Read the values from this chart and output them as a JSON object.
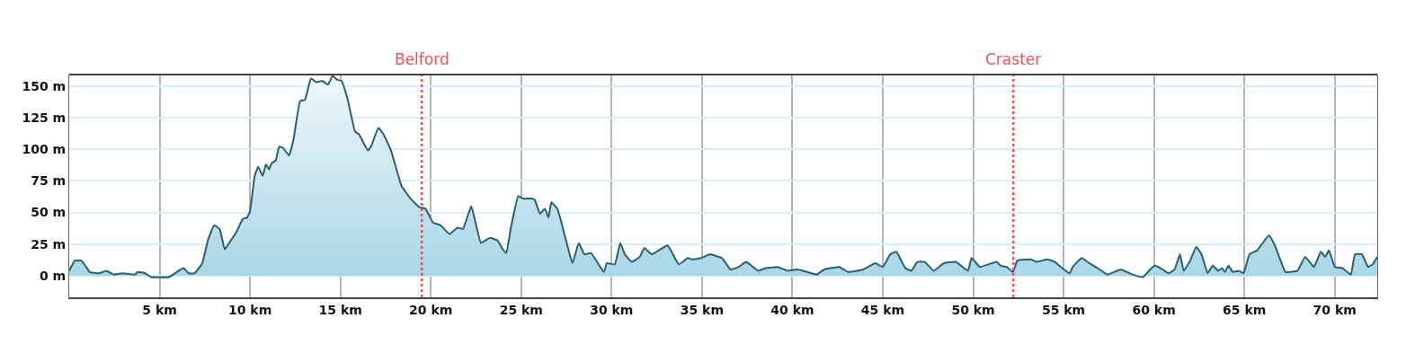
{
  "chart_data": {
    "type": "area",
    "series": [
      {
        "color": "#2b5f6e",
        "x": [
          0,
          0.31,
          0.67,
          0.89,
          1.14,
          1.64,
          2.05,
          2.47,
          2.96,
          3.62,
          3.79,
          4.2,
          4.53,
          5.53,
          5.95,
          6.33,
          6.61,
          6.94,
          7.36,
          7.69,
          8.02,
          8.32,
          8.6,
          8.85,
          9.26,
          9.6,
          9.84,
          10.0,
          10.26,
          10.45,
          10.7,
          10.88,
          11.05,
          11.2,
          11.42,
          11.61,
          11.83,
          12.16,
          12.41,
          12.77,
          13.04,
          13.37,
          13.66,
          13.99,
          14.32,
          14.57,
          14.81,
          15.06,
          15.39,
          15.81,
          16.02,
          16.52,
          16.72,
          17.1,
          17.38,
          17.8,
          18.38,
          18.88,
          19.38,
          19.71,
          20.12,
          20.53,
          21.03,
          21.48,
          21.78,
          22.24,
          22.77,
          23.27,
          23.68,
          23.98,
          24.18,
          24.43,
          24.84,
          25.09,
          25.58,
          25.75,
          26.04,
          26.31,
          26.51,
          26.67,
          27.0,
          27.5,
          27.83,
          28.19,
          28.49,
          28.86,
          29.57,
          29.74,
          30.18,
          30.48,
          30.73,
          31.11,
          31.56,
          31.81,
          32.22,
          33.1,
          33.72,
          34.21,
          34.46,
          34.95,
          35.45,
          35.91,
          36.11,
          36.58,
          37.03,
          37.44,
          38.11,
          38.52,
          39.18,
          39.76,
          40.26,
          40.59,
          41.34,
          41.76,
          42.59,
          43.09,
          43.92,
          44.58,
          45.0,
          45.42,
          45.75,
          46.25,
          46.58,
          46.91,
          47.32,
          47.82,
          48.38,
          49.04,
          49.71,
          49.91,
          50.37,
          51.29,
          51.53,
          51.86,
          52.2,
          52.44,
          53.19,
          53.52,
          54.1,
          54.52,
          55.02,
          55.34,
          55.51,
          56.0,
          56.42,
          57.0,
          57.41,
          58.16,
          58.82,
          59.4,
          59.79,
          60.06,
          60.48,
          60.81,
          61.14,
          61.44,
          61.64,
          61.97,
          62.34,
          62.63,
          62.97,
          63.25,
          63.55,
          63.76,
          63.93,
          64.12,
          64.37,
          64.71,
          64.96,
          65.28,
          65.7,
          66.36,
          66.69,
          67.28,
          67.94,
          68.36,
          68.85,
          69.23,
          69.46,
          69.68,
          70.01,
          70.43,
          70.89,
          71.12,
          71.51,
          71.84,
          72.09,
          72.35
        ],
        "values": [
          4,
          12,
          12,
          8,
          3,
          2,
          4,
          1,
          2,
          1,
          3,
          2,
          -1,
          -1,
          3,
          6,
          2,
          2,
          10,
          29,
          40,
          37,
          21,
          26,
          35,
          45,
          46,
          51,
          79,
          86,
          79,
          88,
          84,
          89,
          91,
          102,
          101,
          95,
          108,
          138,
          139,
          156,
          153,
          154,
          151,
          158,
          155,
          154,
          140,
          114,
          112,
          99,
          103,
          117,
          112,
          99,
          71,
          61,
          54,
          53,
          42,
          40,
          33,
          38,
          37,
          55,
          26,
          30,
          28,
          21,
          18,
          38,
          63,
          61,
          61,
          60,
          49,
          53,
          46,
          58,
          53,
          27,
          10,
          26,
          17,
          18,
          3,
          10,
          9,
          26,
          17,
          11,
          15,
          22,
          17,
          24,
          9,
          14,
          13,
          14,
          17,
          15,
          14,
          5,
          7,
          11,
          4,
          6,
          7,
          4,
          5,
          4,
          1,
          5,
          7,
          3,
          5,
          10,
          7,
          17,
          19,
          6,
          4,
          11,
          11,
          4,
          10,
          11,
          4,
          14,
          7,
          11,
          8,
          7,
          3,
          12,
          13,
          11,
          13,
          11,
          5,
          2,
          7,
          14,
          10,
          5,
          1,
          5,
          1,
          -1,
          5,
          8,
          5,
          2,
          5,
          17,
          4,
          11,
          23,
          17,
          2,
          8,
          4,
          6,
          3,
          8,
          3,
          4,
          2,
          17,
          20,
          32,
          24,
          3,
          4,
          15,
          7,
          19,
          15,
          20,
          7,
          6,
          1,
          17,
          17,
          7,
          9,
          15
        ]
      }
    ],
    "xlim": [
      0,
      72.35
    ],
    "xticks": [
      {
        "value": 5,
        "label": "5 km"
      },
      {
        "value": 10,
        "label": "10 km"
      },
      {
        "value": 15,
        "label": "15 km"
      },
      {
        "value": 20,
        "label": "20 km"
      },
      {
        "value": 25,
        "label": "25 km"
      },
      {
        "value": 30,
        "label": "30 km"
      },
      {
        "value": 35,
        "label": "35 km"
      },
      {
        "value": 40,
        "label": "40 km"
      },
      {
        "value": 45,
        "label": "45 km"
      },
      {
        "value": 50,
        "label": "50 km"
      },
      {
        "value": 55,
        "label": "55 km"
      },
      {
        "value": 60,
        "label": "60 km"
      },
      {
        "value": 65,
        "label": "65 km"
      },
      {
        "value": 70,
        "label": "70 km"
      }
    ],
    "ylim": [
      -17,
      159
    ],
    "yticks": [
      {
        "value": 0,
        "label": "0 m"
      },
      {
        "value": 25,
        "label": "25 m"
      },
      {
        "value": 50,
        "label": "50 m"
      },
      {
        "value": 75,
        "label": "75 m"
      },
      {
        "value": 100,
        "label": "100 m"
      },
      {
        "value": 125,
        "label": "125 m"
      },
      {
        "value": 150,
        "label": "150 m"
      }
    ],
    "grid": true,
    "ref_lines": [
      {
        "axis": "x",
        "value": 19.5,
        "label": "Belford",
        "color": "#e8525a",
        "line_style": "dotted"
      },
      {
        "axis": "x",
        "value": 52.22,
        "label": "Craster",
        "color": "#e8525a",
        "line_style": "dotted"
      }
    ]
  }
}
